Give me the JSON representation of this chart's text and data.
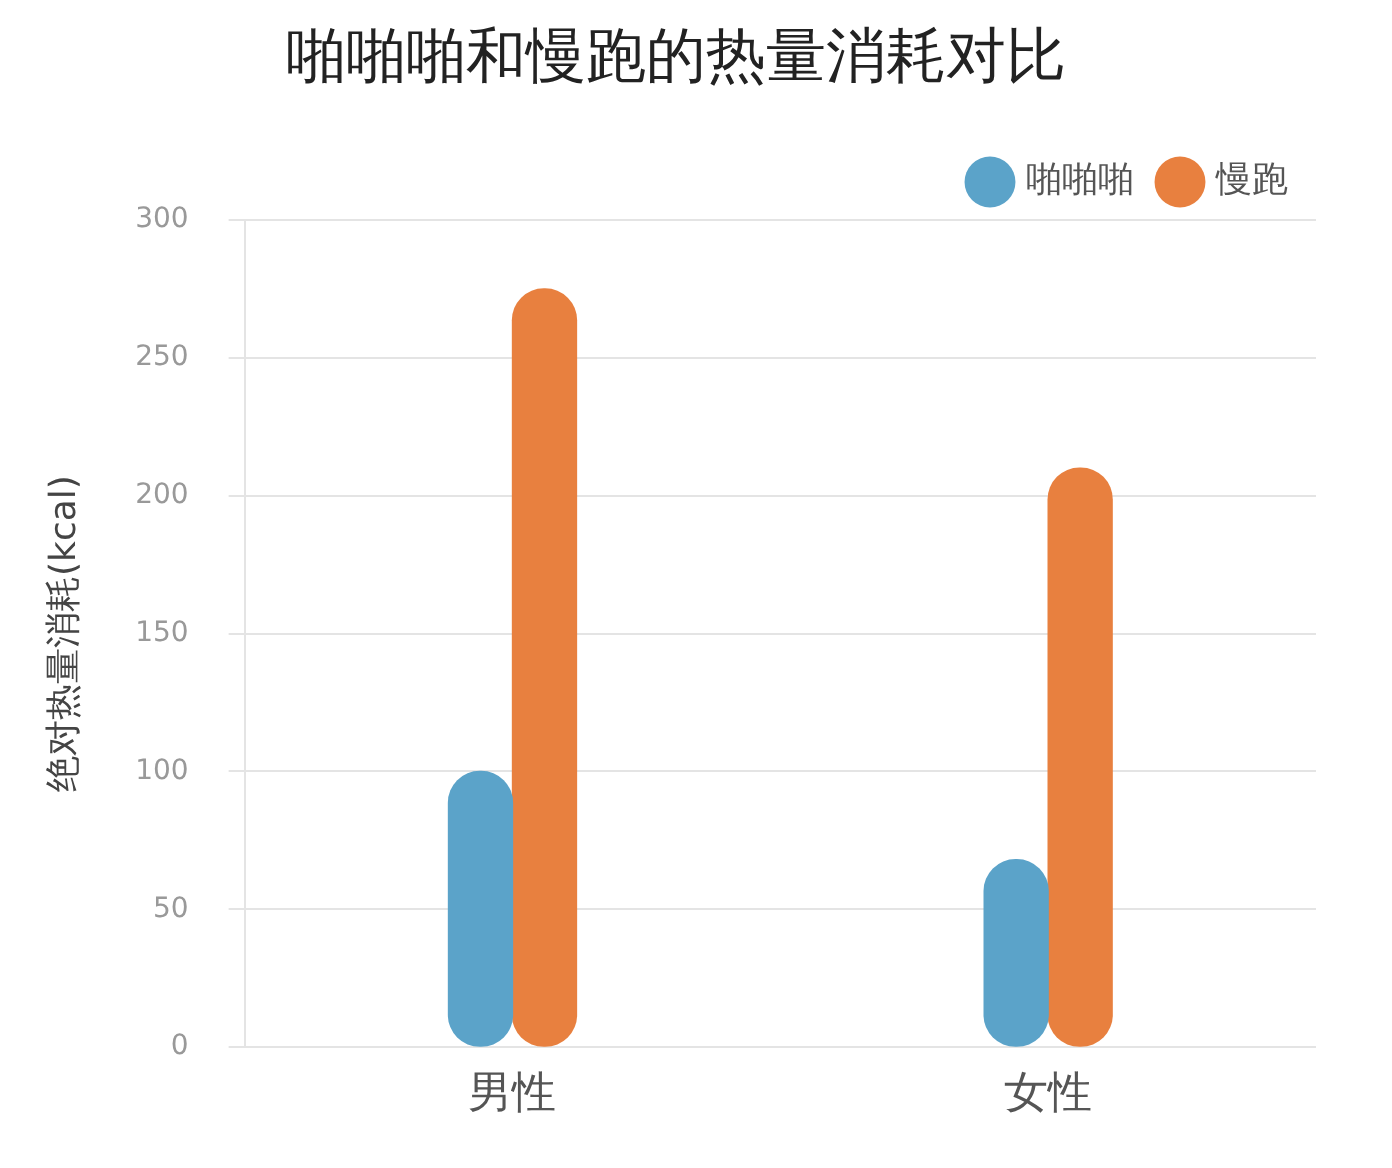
{
  "chart_data": {
    "type": "bar",
    "title": "啪啪啪和慢跑的热量消耗对比",
    "ylabel": "绝对热量消耗(kcal)",
    "categories": [
      "男性",
      "女性"
    ],
    "series": [
      {
        "name": "啪啪啪",
        "color": "#5ba3c9",
        "values": [
          100,
          68
        ]
      },
      {
        "name": "慢跑",
        "color": "#e8803f",
        "values": [
          275,
          210
        ]
      }
    ],
    "ylim": [
      0,
      300
    ],
    "yticks": [
      0,
      50,
      100,
      150,
      200,
      250,
      300
    ],
    "grid": "y",
    "legend": "top right"
  }
}
